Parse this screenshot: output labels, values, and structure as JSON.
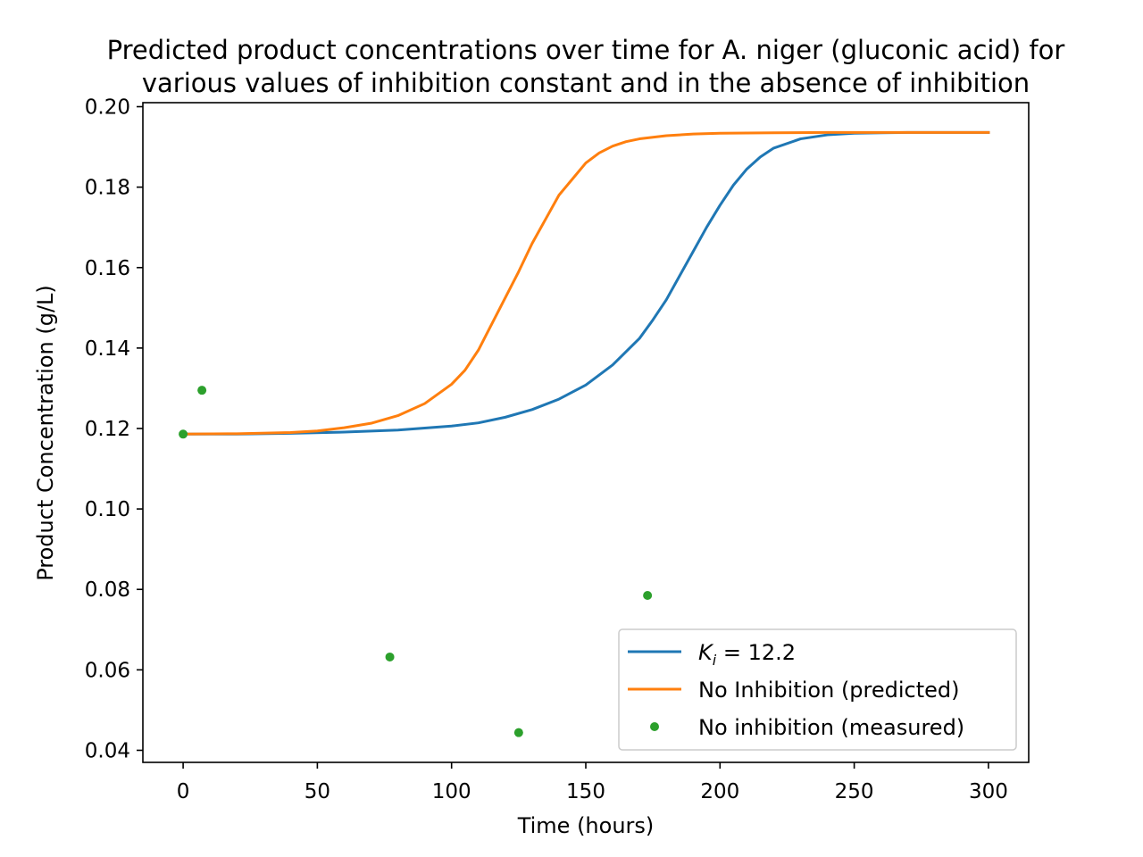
{
  "chart_data": {
    "type": "line",
    "title_line1": "Predicted product concentrations over time for A. niger (gluconic acid) for",
    "title_line2": "various values of inhibition constant and in the absence of inhibition",
    "xlabel": "Time (hours)",
    "ylabel": "Product Concentration (g/L)",
    "xlim": [
      -15,
      315
    ],
    "ylim": [
      0.037,
      0.201
    ],
    "x_ticks": [
      0,
      50,
      100,
      150,
      200,
      250,
      300
    ],
    "y_ticks": [
      0.04,
      0.06,
      0.08,
      0.1,
      0.12,
      0.14,
      0.16,
      0.18,
      0.2
    ],
    "x_tick_labels": [
      "0",
      "50",
      "100",
      "150",
      "200",
      "250",
      "300"
    ],
    "y_tick_labels": [
      "0.04",
      "0.06",
      "0.08",
      "0.10",
      "0.12",
      "0.14",
      "0.16",
      "0.18",
      "0.20"
    ],
    "grid": false,
    "legend_position": "lower-right",
    "series": [
      {
        "name": "K_i = 12.2",
        "legend_base": "K",
        "legend_sub": "i",
        "legend_rest": " = 12.2",
        "kind": "line",
        "color": "#1f77b4",
        "x": [
          0,
          20,
          40,
          60,
          80,
          100,
          110,
          120,
          130,
          140,
          150,
          160,
          170,
          175,
          180,
          185,
          190,
          195,
          200,
          205,
          210,
          215,
          220,
          230,
          240,
          250,
          260,
          270,
          280,
          290,
          300
        ],
        "y": [
          0.1186,
          0.1186,
          0.1188,
          0.1191,
          0.1196,
          0.1206,
          0.1214,
          0.1228,
          0.1247,
          0.1273,
          0.1308,
          0.1358,
          0.1424,
          0.147,
          0.152,
          0.158,
          0.164,
          0.17,
          0.1755,
          0.1805,
          0.1845,
          0.1875,
          0.1897,
          0.192,
          0.193,
          0.1934,
          0.1935,
          0.1936,
          0.1936,
          0.1936,
          0.1936
        ]
      },
      {
        "name": "No Inhibition (predicted)",
        "kind": "line",
        "color": "#ff7f0e",
        "x": [
          0,
          20,
          40,
          50,
          60,
          70,
          80,
          90,
          100,
          105,
          110,
          115,
          120,
          125,
          130,
          135,
          140,
          145,
          150,
          155,
          160,
          165,
          170,
          180,
          190,
          200,
          220,
          240,
          260,
          280,
          300
        ],
        "y": [
          0.1186,
          0.1187,
          0.119,
          0.1194,
          0.1202,
          0.1213,
          0.1232,
          0.1262,
          0.131,
          0.1345,
          0.1395,
          0.146,
          0.1525,
          0.159,
          0.166,
          0.172,
          0.178,
          0.182,
          0.186,
          0.1885,
          0.1902,
          0.1913,
          0.192,
          0.1928,
          0.1932,
          0.1934,
          0.1935,
          0.1936,
          0.1936,
          0.1936,
          0.1936
        ]
      },
      {
        "name": "No inhibition (measured)",
        "kind": "scatter",
        "color": "#2ca02c",
        "x": [
          0,
          7,
          77,
          125,
          173
        ],
        "y": [
          0.1186,
          0.1295,
          0.0632,
          0.0444,
          0.0785
        ]
      }
    ]
  }
}
